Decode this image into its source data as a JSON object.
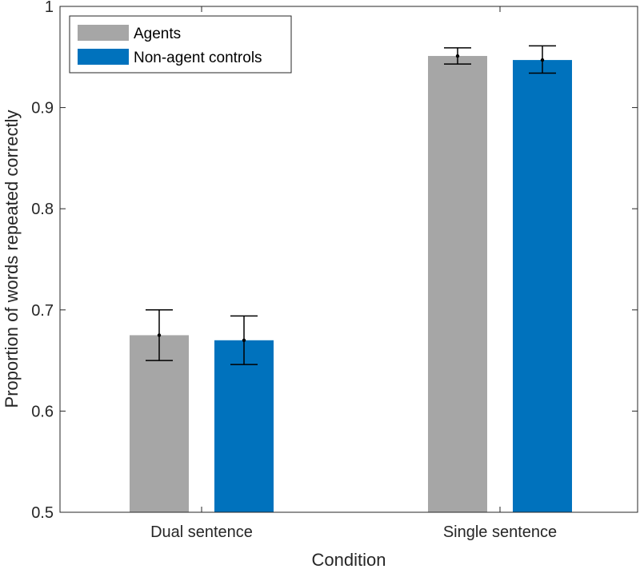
{
  "chart_data": {
    "type": "bar",
    "title": "",
    "xlabel": "Condition",
    "ylabel": "Proportion of words repeated correctly",
    "categories": [
      "Dual sentence",
      "Single sentence"
    ],
    "ylim": [
      0.5,
      1
    ],
    "yticks": [
      0.5,
      0.6,
      0.7,
      0.8,
      0.9,
      1
    ],
    "ytick_labels": [
      "0.5",
      "0.6",
      "0.7",
      "0.8",
      "0.9",
      "1"
    ],
    "grid": false,
    "legend_position": "top-left",
    "series": [
      {
        "name": "Agents",
        "color": "#a6a6a6",
        "values": [
          0.675,
          0.951
        ],
        "error_low": [
          0.65,
          0.943
        ],
        "error_high": [
          0.7,
          0.959
        ]
      },
      {
        "name": "Non-agent controls",
        "color": "#0072bd",
        "values": [
          0.67,
          0.947
        ],
        "error_low": [
          0.646,
          0.934
        ],
        "error_high": [
          0.694,
          0.961
        ]
      }
    ]
  }
}
